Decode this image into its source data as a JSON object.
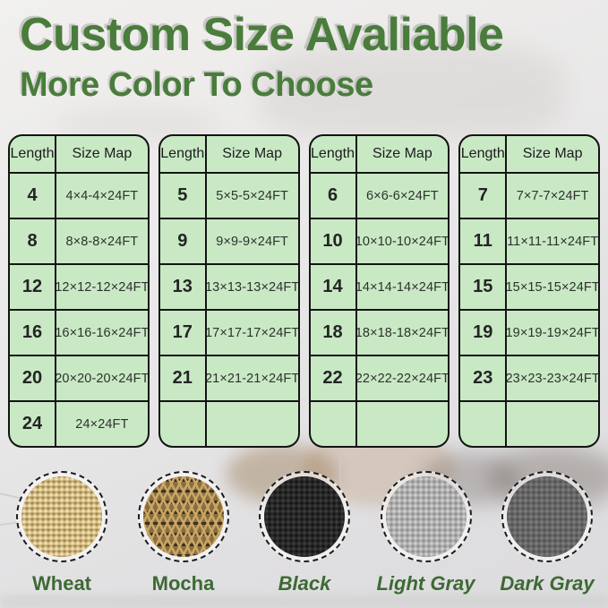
{
  "header": {
    "title": "Custom Size Avaliable",
    "subtitle": "More Color To Choose",
    "accent_color": "#4a7c3c"
  },
  "size_tables": {
    "columns": [
      "Length",
      "Size Map"
    ],
    "cell_bg": "#c8e9c4",
    "border_color": "#141414",
    "tables": [
      {
        "rows": [
          {
            "length": "4",
            "size": "4×4-4×24FT"
          },
          {
            "length": "8",
            "size": "8×8-8×24FT"
          },
          {
            "length": "12",
            "size": "12×12-12×24FT"
          },
          {
            "length": "16",
            "size": "16×16-16×24FT"
          },
          {
            "length": "20",
            "size": "20×20-20×24FT"
          },
          {
            "length": "24",
            "size": "24×24FT"
          }
        ]
      },
      {
        "rows": [
          {
            "length": "5",
            "size": "5×5-5×24FT"
          },
          {
            "length": "9",
            "size": "9×9-9×24FT"
          },
          {
            "length": "13",
            "size": "13×13-13×24FT"
          },
          {
            "length": "17",
            "size": "17×17-17×24FT"
          },
          {
            "length": "21",
            "size": "21×21-21×24FT"
          },
          {
            "length": "",
            "size": ""
          }
        ]
      },
      {
        "rows": [
          {
            "length": "6",
            "size": "6×6-6×24FT"
          },
          {
            "length": "10",
            "size": "10×10-10×24FT"
          },
          {
            "length": "14",
            "size": "14×14-14×24FT"
          },
          {
            "length": "18",
            "size": "18×18-18×24FT"
          },
          {
            "length": "22",
            "size": "22×22-22×24FT"
          },
          {
            "length": "",
            "size": ""
          }
        ]
      },
      {
        "rows": [
          {
            "length": "7",
            "size": "7×7-7×24FT"
          },
          {
            "length": "11",
            "size": "11×11-11×24FT"
          },
          {
            "length": "15",
            "size": "15×15-15×24FT"
          },
          {
            "length": "19",
            "size": "19×19-19×24FT"
          },
          {
            "length": "23",
            "size": "23×23-23×24FT"
          },
          {
            "length": "",
            "size": ""
          }
        ]
      }
    ]
  },
  "colors": {
    "label_color": "#3c6a33",
    "items": [
      {
        "name": "Wheat",
        "texture": "wheat",
        "hex": "#d7c18a",
        "italic": false
      },
      {
        "name": "Mocha",
        "texture": "mocha",
        "hex": "#8a6f3e",
        "italic": false
      },
      {
        "name": "Black",
        "texture": "black",
        "hex": "#282828",
        "italic": true
      },
      {
        "name": "Light Gray",
        "texture": "light-gray",
        "hex": "#b0b0b0",
        "italic": true
      },
      {
        "name": "Dark Gray",
        "texture": "dark-gray",
        "hex": "#676767",
        "italic": true
      }
    ]
  }
}
